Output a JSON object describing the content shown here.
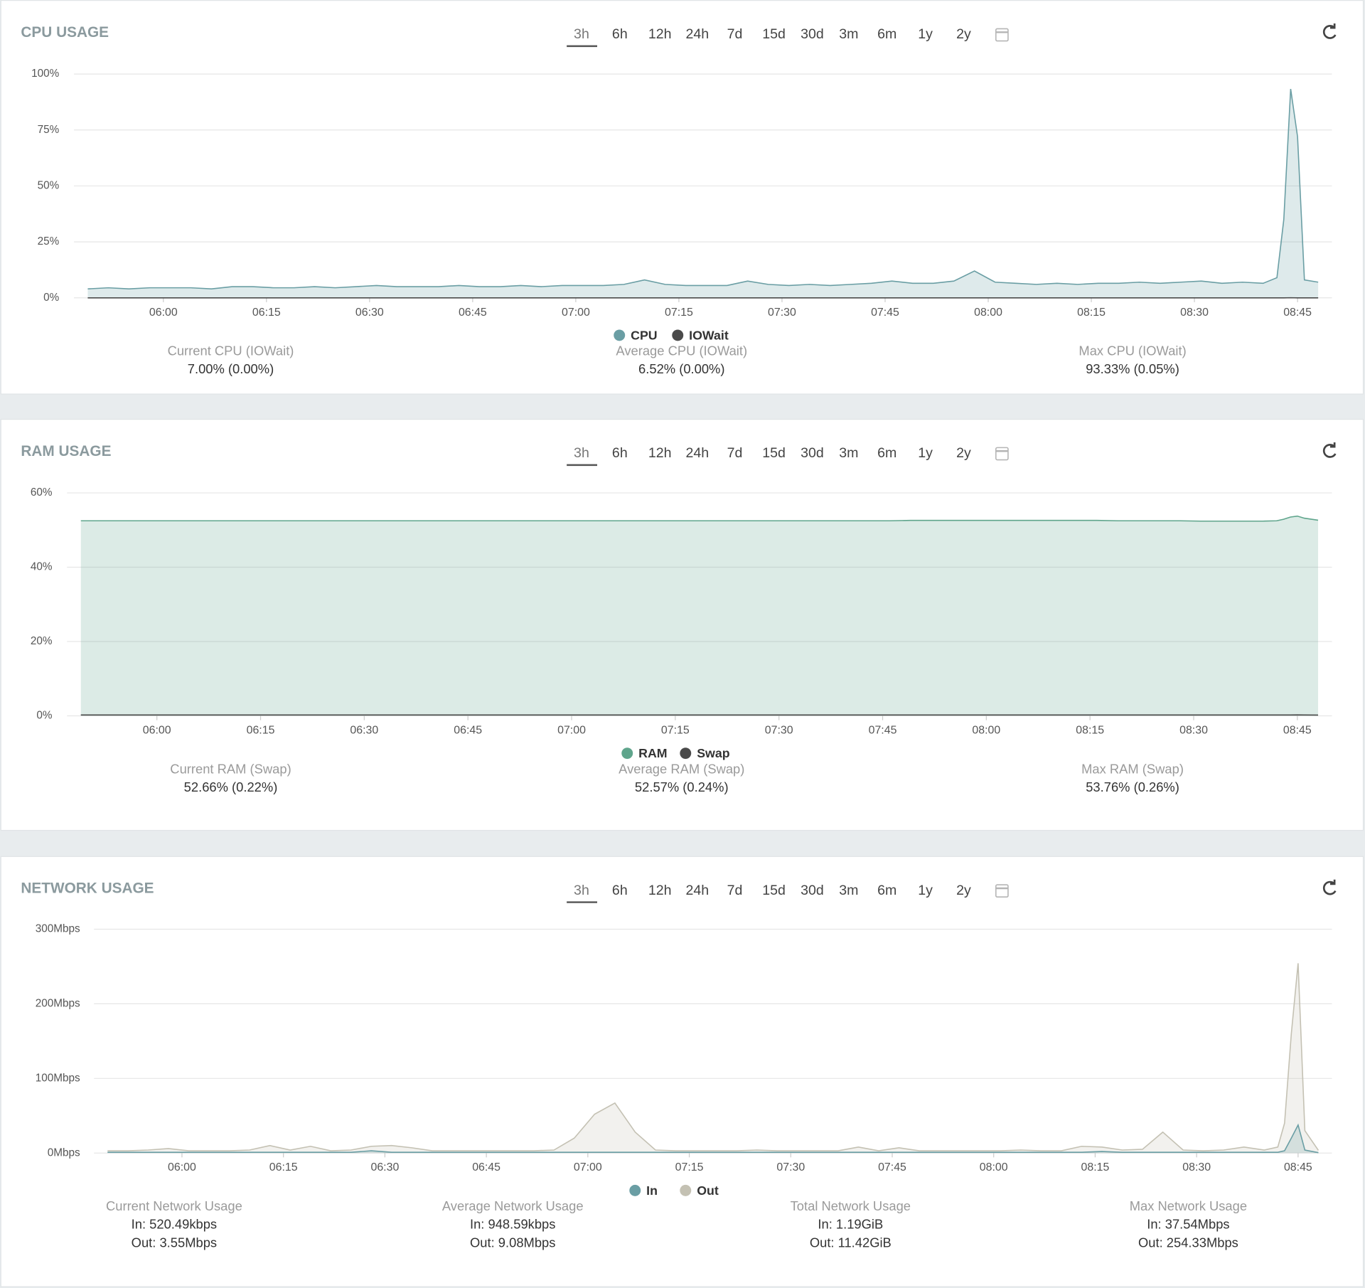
{
  "ranges": [
    "3h",
    "6h",
    "12h",
    "24h",
    "7d",
    "15d",
    "30d",
    "3m",
    "6m",
    "1y",
    "2y"
  ],
  "chart_data": [
    {
      "type": "area",
      "title": "CPU USAGE",
      "grid": true,
      "legend": "bottom",
      "x": [
        "05:49",
        "05:52",
        "05:55",
        "05:58",
        "06:01",
        "06:04",
        "06:07",
        "06:10",
        "06:13",
        "06:16",
        "06:19",
        "06:22",
        "06:25",
        "06:28",
        "06:31",
        "06:34",
        "06:37",
        "06:40",
        "06:43",
        "06:46",
        "06:49",
        "06:52",
        "06:55",
        "06:58",
        "07:01",
        "07:04",
        "07:07",
        "07:10",
        "07:13",
        "07:16",
        "07:19",
        "07:22",
        "07:25",
        "07:28",
        "07:31",
        "07:34",
        "07:37",
        "07:40",
        "07:43",
        "07:46",
        "07:49",
        "07:52",
        "07:55",
        "07:58",
        "08:01",
        "08:04",
        "08:07",
        "08:10",
        "08:13",
        "08:16",
        "08:19",
        "08:22",
        "08:25",
        "08:28",
        "08:31",
        "08:34",
        "08:37",
        "08:40",
        "08:42",
        "08:43",
        "08:44",
        "08:45",
        "08:46",
        "08:48"
      ],
      "xlim": [
        "05:47",
        "08:50"
      ],
      "xticks": [
        "06:00",
        "06:15",
        "06:30",
        "06:45",
        "07:00",
        "07:15",
        "07:30",
        "07:45",
        "08:00",
        "08:15",
        "08:30",
        "08:45"
      ],
      "ylim": [
        0,
        100
      ],
      "yticks": [
        {
          "value": 0,
          "label": "0%"
        },
        {
          "value": 25,
          "label": "25%"
        },
        {
          "value": 50,
          "label": "50%"
        },
        {
          "value": 75,
          "label": "75%"
        },
        {
          "value": 100,
          "label": "100%"
        }
      ],
      "series": [
        {
          "name": "CPU",
          "color": "#6a9ea4",
          "values": [
            4,
            4.5,
            4,
            4.5,
            4.5,
            4.5,
            4,
            5,
            5,
            4.5,
            4.5,
            5,
            4.5,
            5,
            5.5,
            5,
            5,
            5,
            5.5,
            5,
            5,
            5.5,
            5,
            5.5,
            5.5,
            5.5,
            6,
            8,
            6,
            5.5,
            5.5,
            5.5,
            7.5,
            6,
            5.5,
            6,
            5.5,
            6,
            6.5,
            7.5,
            6.5,
            6.5,
            7.5,
            12,
            7,
            6.5,
            6,
            6.5,
            6,
            6.5,
            6.5,
            7,
            6.5,
            7,
            7.5,
            6.5,
            7,
            6.5,
            9,
            35,
            93.33,
            72,
            8,
            7
          ]
        },
        {
          "name": "IOWait",
          "color": "#4a4a4a",
          "values": [
            0,
            0,
            0,
            0,
            0,
            0,
            0,
            0,
            0,
            0,
            0,
            0,
            0,
            0,
            0,
            0,
            0,
            0,
            0,
            0,
            0,
            0,
            0,
            0,
            0,
            0,
            0,
            0,
            0,
            0,
            0,
            0,
            0,
            0,
            0,
            0,
            0,
            0,
            0,
            0,
            0,
            0,
            0,
            0,
            0,
            0,
            0,
            0,
            0,
            0,
            0,
            0,
            0,
            0,
            0,
            0,
            0,
            0,
            0,
            0,
            0.05,
            0,
            0,
            0
          ]
        }
      ],
      "stats": [
        {
          "label": "Current CPU (IOWait)",
          "lines": [
            "7.00% (0.00%)"
          ]
        },
        {
          "label": "Average CPU (IOWait)",
          "lines": [
            "6.52% (0.00%)"
          ]
        },
        {
          "label": "Max CPU (IOWait)",
          "lines": [
            "93.33% (0.05%)"
          ]
        }
      ]
    },
    {
      "type": "area",
      "title": "RAM USAGE",
      "grid": true,
      "legend": "bottom",
      "x": [
        "05:49",
        "05:52",
        "05:55",
        "05:58",
        "06:01",
        "06:04",
        "06:07",
        "06:10",
        "06:13",
        "06:16",
        "06:19",
        "06:22",
        "06:25",
        "06:28",
        "06:31",
        "06:34",
        "06:37",
        "06:40",
        "06:43",
        "06:46",
        "06:49",
        "06:52",
        "06:55",
        "06:58",
        "07:01",
        "07:04",
        "07:07",
        "07:10",
        "07:13",
        "07:16",
        "07:19",
        "07:22",
        "07:25",
        "07:28",
        "07:31",
        "07:34",
        "07:37",
        "07:40",
        "07:43",
        "07:46",
        "07:49",
        "07:52",
        "07:55",
        "07:58",
        "08:01",
        "08:04",
        "08:07",
        "08:10",
        "08:13",
        "08:16",
        "08:19",
        "08:22",
        "08:25",
        "08:28",
        "08:31",
        "08:34",
        "08:37",
        "08:40",
        "08:42",
        "08:43",
        "08:44",
        "08:45",
        "08:46",
        "08:48"
      ],
      "xlim": [
        "05:47",
        "08:50"
      ],
      "xticks": [
        "06:00",
        "06:15",
        "06:30",
        "06:45",
        "07:00",
        "07:15",
        "07:30",
        "07:45",
        "08:00",
        "08:15",
        "08:30",
        "08:45"
      ],
      "ylim": [
        0,
        60
      ],
      "yticks": [
        {
          "value": 0,
          "label": "0%"
        },
        {
          "value": 20,
          "label": "20%"
        },
        {
          "value": 40,
          "label": "40%"
        },
        {
          "value": 60,
          "label": "60%"
        }
      ],
      "series": [
        {
          "name": "RAM",
          "color": "#5fa58c",
          "values": [
            52.5,
            52.5,
            52.5,
            52.5,
            52.5,
            52.5,
            52.5,
            52.5,
            52.5,
            52.5,
            52.5,
            52.5,
            52.5,
            52.5,
            52.5,
            52.5,
            52.5,
            52.5,
            52.5,
            52.5,
            52.5,
            52.5,
            52.5,
            52.5,
            52.5,
            52.5,
            52.5,
            52.5,
            52.5,
            52.5,
            52.5,
            52.5,
            52.5,
            52.5,
            52.5,
            52.5,
            52.5,
            52.5,
            52.5,
            52.5,
            52.6,
            52.6,
            52.6,
            52.6,
            52.6,
            52.6,
            52.6,
            52.6,
            52.6,
            52.6,
            52.5,
            52.5,
            52.5,
            52.5,
            52.4,
            52.4,
            52.4,
            52.4,
            52.5,
            52.9,
            53.5,
            53.76,
            53.2,
            52.66
          ]
        },
        {
          "name": "Swap",
          "color": "#4a4a4a",
          "values": [
            0.24,
            0.24,
            0.24,
            0.24,
            0.24,
            0.24,
            0.24,
            0.24,
            0.24,
            0.24,
            0.24,
            0.24,
            0.24,
            0.24,
            0.24,
            0.24,
            0.24,
            0.24,
            0.24,
            0.24,
            0.24,
            0.24,
            0.24,
            0.24,
            0.24,
            0.24,
            0.24,
            0.24,
            0.24,
            0.24,
            0.24,
            0.24,
            0.24,
            0.24,
            0.24,
            0.24,
            0.24,
            0.24,
            0.24,
            0.24,
            0.24,
            0.24,
            0.24,
            0.24,
            0.24,
            0.24,
            0.24,
            0.24,
            0.24,
            0.24,
            0.24,
            0.24,
            0.24,
            0.24,
            0.24,
            0.24,
            0.24,
            0.24,
            0.24,
            0.24,
            0.24,
            0.26,
            0.24,
            0.22
          ]
        }
      ],
      "stats": [
        {
          "label": "Current RAM (Swap)",
          "lines": [
            "52.66% (0.22%)"
          ]
        },
        {
          "label": "Average RAM (Swap)",
          "lines": [
            "52.57% (0.24%)"
          ]
        },
        {
          "label": "Max RAM (Swap)",
          "lines": [
            "53.76% (0.26%)"
          ]
        }
      ]
    },
    {
      "type": "area",
      "title": "NETWORK USAGE",
      "grid": true,
      "legend": "bottom",
      "x": [
        "05:49",
        "05:52",
        "05:55",
        "05:58",
        "06:01",
        "06:04",
        "06:07",
        "06:10",
        "06:13",
        "06:16",
        "06:19",
        "06:22",
        "06:25",
        "06:28",
        "06:31",
        "06:34",
        "06:37",
        "06:40",
        "06:43",
        "06:46",
        "06:49",
        "06:52",
        "06:55",
        "06:58",
        "07:01",
        "07:04",
        "07:07",
        "07:10",
        "07:13",
        "07:16",
        "07:19",
        "07:22",
        "07:25",
        "07:28",
        "07:31",
        "07:34",
        "07:37",
        "07:40",
        "07:43",
        "07:46",
        "07:49",
        "07:52",
        "07:55",
        "07:58",
        "08:01",
        "08:04",
        "08:07",
        "08:10",
        "08:13",
        "08:16",
        "08:19",
        "08:22",
        "08:25",
        "08:28",
        "08:31",
        "08:34",
        "08:37",
        "08:40",
        "08:42",
        "08:43",
        "08:44",
        "08:45",
        "08:46",
        "08:48"
      ],
      "xlim": [
        "05:47",
        "08:50"
      ],
      "xticks": [
        "06:00",
        "06:15",
        "06:30",
        "06:45",
        "07:00",
        "07:15",
        "07:30",
        "07:45",
        "08:00",
        "08:15",
        "08:30",
        "08:45"
      ],
      "ylim": [
        0,
        300
      ],
      "yticks": [
        {
          "value": 0,
          "label": "0Mbps"
        },
        {
          "value": 100,
          "label": "100Mbps"
        },
        {
          "value": 200,
          "label": "200Mbps"
        },
        {
          "value": 300,
          "label": "300Mbps"
        }
      ],
      "series": [
        {
          "name": "In",
          "color": "#6a9ea4",
          "values": [
            1,
            1,
            1,
            1,
            1,
            1,
            1,
            1,
            1,
            1,
            1,
            1,
            1,
            3,
            1,
            1,
            1,
            1,
            1,
            1,
            1,
            1,
            1,
            1,
            1,
            1,
            1,
            1,
            1,
            1,
            1,
            1,
            1,
            1,
            1,
            1,
            1,
            1,
            1,
            1,
            1,
            1,
            1,
            1,
            1,
            1,
            1,
            1,
            1,
            2,
            1,
            1,
            1,
            1,
            1,
            1,
            1,
            1,
            1,
            3,
            20,
            37.54,
            4,
            0.52
          ]
        },
        {
          "name": "Out",
          "color": "#c4c1b3",
          "values": [
            3,
            3,
            4,
            6,
            3,
            3,
            3,
            4,
            10,
            4,
            9,
            3,
            4,
            9,
            10,
            7,
            3,
            3,
            3,
            3,
            3,
            3,
            4,
            20,
            52,
            67,
            28,
            4,
            3,
            3,
            3,
            3,
            4,
            3,
            3,
            3,
            3,
            8,
            3,
            7,
            3,
            3,
            3,
            3,
            3,
            4,
            3,
            3,
            9,
            8,
            4,
            5,
            28,
            4,
            3,
            4,
            8,
            4,
            8,
            40,
            160,
            254.33,
            30,
            3.55
          ]
        }
      ],
      "stats": [
        {
          "label": "Current Network Usage",
          "lines": [
            "In: 520.49kbps",
            "Out: 3.55Mbps"
          ]
        },
        {
          "label": "Average Network Usage",
          "lines": [
            "In: 948.59kbps",
            "Out: 9.08Mbps"
          ]
        },
        {
          "label": "Total Network Usage",
          "lines": [
            "In: 1.19GiB",
            "Out: 11.42GiB"
          ]
        },
        {
          "label": "Max Network Usage",
          "lines": [
            "In: 37.54Mbps",
            "Out: 254.33Mbps"
          ]
        }
      ]
    }
  ]
}
